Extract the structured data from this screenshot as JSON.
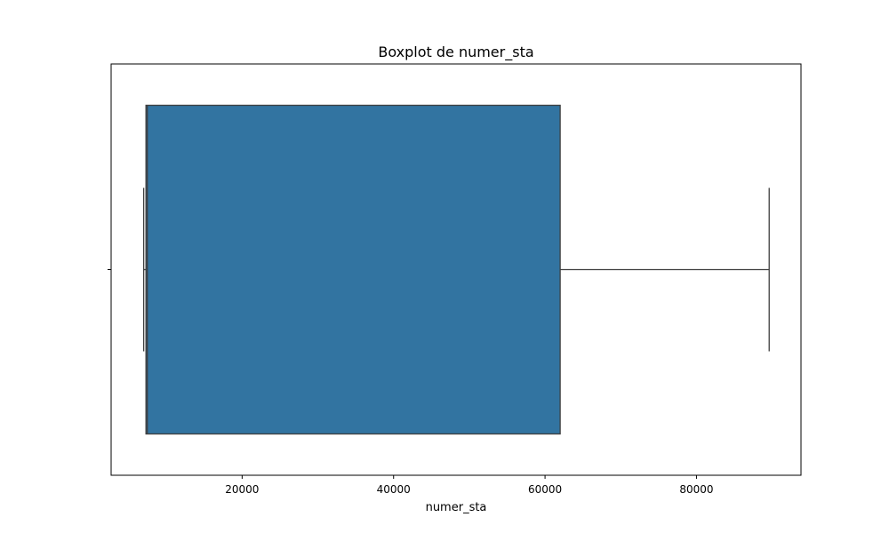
{
  "chart_data": {
    "type": "boxplot",
    "title": "Boxplot de numer_sta",
    "xlabel": "numer_sta",
    "ylabel": "",
    "xlim": [
      2700,
      93800
    ],
    "orientation": "horizontal",
    "grid": false,
    "legend": "none",
    "xticks": [
      20000,
      40000,
      60000,
      80000
    ],
    "xtick_labels": [
      "20000",
      "40000",
      "60000",
      "80000"
    ],
    "series": [
      {
        "box_color": "#3274a1",
        "line_color": "#3f3f3f",
        "whisker_low": 7000,
        "q1": 7300,
        "median": 7480,
        "q3": 62000,
        "whisker_high": 89600
      }
    ]
  }
}
